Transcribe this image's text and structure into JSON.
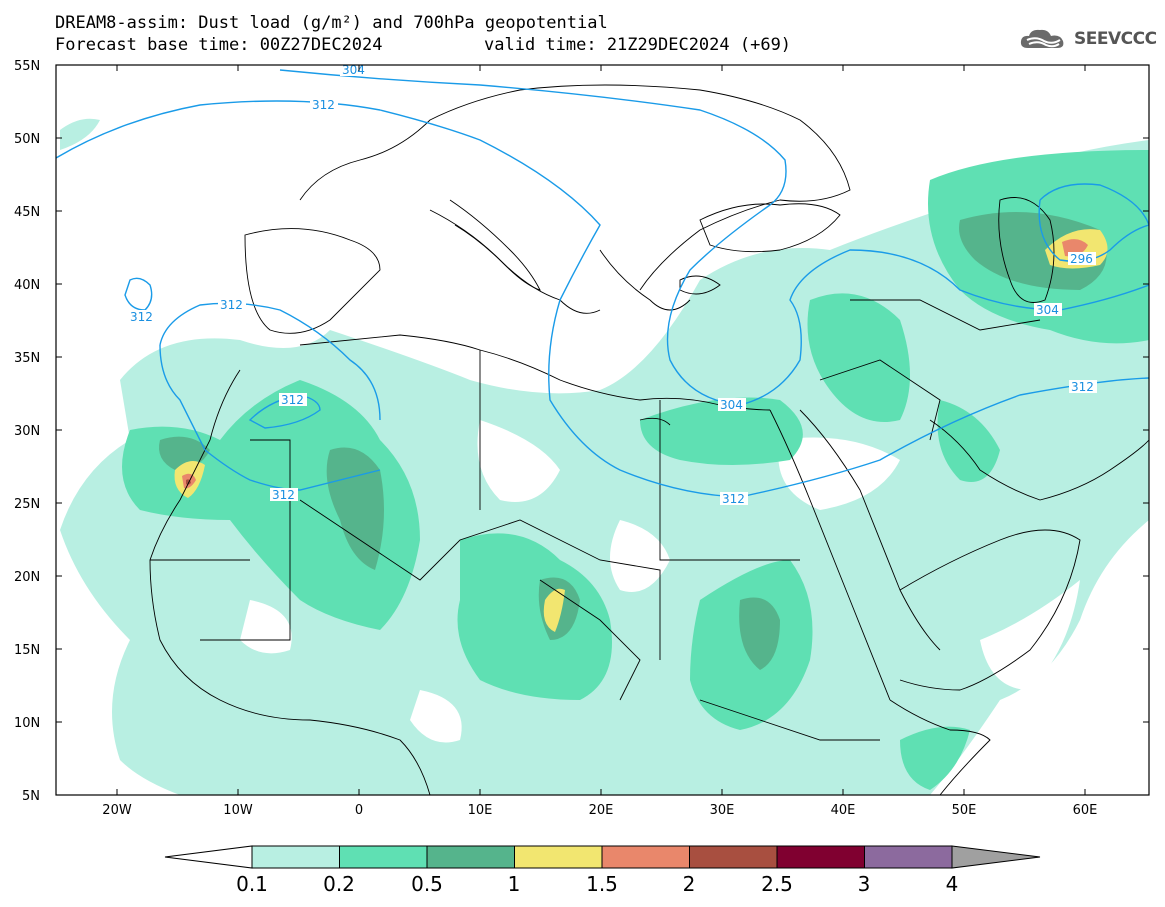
{
  "title": {
    "line1": "DREAM8-assim: Dust load (g/m²) and 700hPa geopotential",
    "line2": "Forecast base time: 00Z27DEC2024",
    "valid": "valid time: 21Z29DEC2024 (+69)"
  },
  "logo": {
    "icon": "cloud-icon",
    "text": "SEEVCCC"
  },
  "map": {
    "lat_labels": [
      "55N",
      "50N",
      "45N",
      "40N",
      "35N",
      "30N",
      "25N",
      "20N",
      "15N",
      "10N",
      "5N"
    ],
    "lon_labels": [
      "20W",
      "10W",
      "0",
      "10E",
      "20E",
      "30E",
      "40E",
      "50E",
      "60E"
    ],
    "contour_labels": [
      "304",
      "312",
      "312",
      "312",
      "312",
      "312",
      "304",
      "312",
      "296",
      "304",
      "312"
    ]
  },
  "colorbar": {
    "labels": [
      "0.1",
      "0.2",
      "0.5",
      "1",
      "1.5",
      "2",
      "2.5",
      "3",
      "4"
    ],
    "colors": [
      "#b8efe2",
      "#5fe0b3",
      "#55b48c",
      "#f2e670",
      "#e9876b",
      "#a84f40",
      "#800030",
      "#8c6a9e",
      "#a0a0a0"
    ]
  }
}
